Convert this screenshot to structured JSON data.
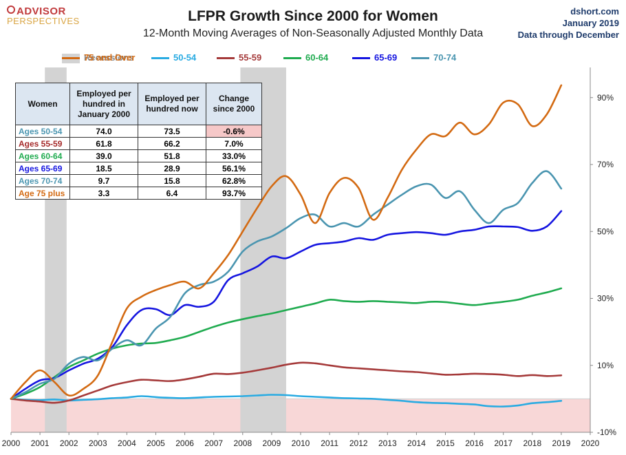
{
  "header": {
    "title": "LFPR Growth Since 2000 for Women",
    "subtitle": "12-Month Moving Averages of Non-Seasonally Adjusted Monthly Data",
    "logo_line1": "ADVISOR",
    "logo_line2": "PERSPECTIVES",
    "source": "dshort.com",
    "source_date": "January 2019",
    "source_note": "Data through December"
  },
  "legend": [
    {
      "label": "Recessions",
      "color": "#d3d3d3",
      "kind": "box"
    },
    {
      "label": "50-54",
      "color": "#29abe2",
      "kind": "line"
    },
    {
      "label": "55-59",
      "color": "#a53a3a",
      "kind": "line"
    },
    {
      "label": "60-64",
      "color": "#1fab4f",
      "kind": "line"
    },
    {
      "label": "65-69",
      "color": "#1515e0",
      "kind": "line"
    },
    {
      "label": "70-74",
      "color": "#4a95b0",
      "kind": "line"
    },
    {
      "label": "75 and Over",
      "color": "#d36a12",
      "kind": "line"
    }
  ],
  "table": {
    "headers": [
      "Women",
      "Employed per hundred in January 2000",
      "Employed per hundred now",
      "Change since 2000"
    ],
    "rows": [
      {
        "label": "Ages 50-54",
        "color": "#4a95b0",
        "v2000": "74.0",
        "now": "73.5",
        "change": "-0.6%",
        "neg": true
      },
      {
        "label": "Ages 55-59",
        "color": "#a52a2a",
        "v2000": "61.8",
        "now": "66.2",
        "change": "7.0%",
        "neg": false
      },
      {
        "label": "Ages 60-64",
        "color": "#1fab4f",
        "v2000": "39.0",
        "now": "51.8",
        "change": "33.0%",
        "neg": false
      },
      {
        "label": "Ages 65-69",
        "color": "#1515e0",
        "v2000": "18.5",
        "now": "28.9",
        "change": "56.1%",
        "neg": false
      },
      {
        "label": "Ages 70-74",
        "color": "#4a95b0",
        "v2000": "9.7",
        "now": "15.8",
        "change": "62.8%",
        "neg": false
      },
      {
        "label": "Age 75 plus",
        "color": "#d36a12",
        "v2000": "3.3",
        "now": "6.4",
        "change": "93.7%",
        "neg": false
      }
    ]
  },
  "chart_data": {
    "type": "line",
    "x_tick_labels": [
      "2000",
      "2001",
      "2002",
      "2003",
      "2004",
      "2005",
      "2006",
      "2007",
      "2008",
      "2009",
      "2010",
      "2011",
      "2012",
      "2013",
      "2014",
      "2015",
      "2016",
      "2017",
      "2018",
      "2019",
      "2020"
    ],
    "xlim": [
      2000,
      2020
    ],
    "y_tick_labels": [
      "-10%",
      "10%",
      "30%",
      "50%",
      "70%",
      "90%"
    ],
    "y_ticks": [
      -10,
      10,
      30,
      50,
      70,
      90
    ],
    "ylim": [
      -10,
      95
    ],
    "y_axis_side": "right",
    "negative_shading_color": "#f8d7d7",
    "recessions": [
      [
        2001.17,
        2001.92
      ],
      [
        2007.92,
        2009.5
      ]
    ],
    "series": [
      {
        "name": "50-54",
        "color": "#29abe2",
        "points": [
          [
            2000,
            0
          ],
          [
            2000.5,
            -0.3
          ],
          [
            2001,
            -0.4
          ],
          [
            2001.5,
            -0.2
          ],
          [
            2002,
            -0.5
          ],
          [
            2002.5,
            -0.3
          ],
          [
            2003,
            -0.1
          ],
          [
            2003.5,
            0.2
          ],
          [
            2004,
            0.4
          ],
          [
            2004.5,
            0.8
          ],
          [
            2005,
            0.5
          ],
          [
            2005.5,
            0.3
          ],
          [
            2006,
            0.2
          ],
          [
            2006.5,
            0.4
          ],
          [
            2007,
            0.6
          ],
          [
            2007.5,
            0.7
          ],
          [
            2008,
            0.8
          ],
          [
            2008.5,
            1.0
          ],
          [
            2009,
            1.2
          ],
          [
            2009.5,
            1.1
          ],
          [
            2010,
            0.8
          ],
          [
            2010.5,
            0.6
          ],
          [
            2011,
            0.4
          ],
          [
            2011.5,
            0.2
          ],
          [
            2012,
            0.1
          ],
          [
            2012.5,
            0.0
          ],
          [
            2013,
            -0.3
          ],
          [
            2013.5,
            -0.6
          ],
          [
            2014,
            -1.0
          ],
          [
            2014.5,
            -1.2
          ],
          [
            2015,
            -1.3
          ],
          [
            2015.5,
            -1.5
          ],
          [
            2016,
            -1.7
          ],
          [
            2016.5,
            -2.2
          ],
          [
            2017,
            -2.3
          ],
          [
            2017.5,
            -2.0
          ],
          [
            2018,
            -1.3
          ],
          [
            2018.5,
            -1.0
          ],
          [
            2019,
            -0.6
          ]
        ]
      },
      {
        "name": "55-59",
        "color": "#a53a3a",
        "points": [
          [
            2000,
            0
          ],
          [
            2000.5,
            -0.5
          ],
          [
            2001,
            -0.8
          ],
          [
            2001.5,
            -1.2
          ],
          [
            2002,
            -0.5
          ],
          [
            2002.5,
            1.0
          ],
          [
            2003,
            2.5
          ],
          [
            2003.5,
            4.0
          ],
          [
            2004,
            5.0
          ],
          [
            2004.5,
            5.7
          ],
          [
            2005,
            5.5
          ],
          [
            2005.5,
            5.3
          ],
          [
            2006,
            5.8
          ],
          [
            2006.5,
            6.6
          ],
          [
            2007,
            7.5
          ],
          [
            2007.5,
            7.4
          ],
          [
            2008,
            7.8
          ],
          [
            2008.5,
            8.5
          ],
          [
            2009,
            9.3
          ],
          [
            2009.5,
            10.2
          ],
          [
            2010,
            10.8
          ],
          [
            2010.5,
            10.6
          ],
          [
            2011,
            10.0
          ],
          [
            2011.5,
            9.4
          ],
          [
            2012,
            9.1
          ],
          [
            2012.5,
            8.8
          ],
          [
            2013,
            8.5
          ],
          [
            2013.5,
            8.2
          ],
          [
            2014,
            8.0
          ],
          [
            2014.5,
            7.6
          ],
          [
            2015,
            7.2
          ],
          [
            2015.5,
            7.3
          ],
          [
            2016,
            7.5
          ],
          [
            2016.5,
            7.4
          ],
          [
            2017,
            7.2
          ],
          [
            2017.5,
            6.8
          ],
          [
            2018,
            7.1
          ],
          [
            2018.5,
            6.8
          ],
          [
            2019,
            7.0
          ]
        ]
      },
      {
        "name": "60-64",
        "color": "#1fab4f",
        "points": [
          [
            2000,
            0
          ],
          [
            2000.5,
            1.5
          ],
          [
            2001,
            3.5
          ],
          [
            2001.5,
            6.5
          ],
          [
            2002,
            9.5
          ],
          [
            2002.5,
            11.5
          ],
          [
            2003,
            13.5
          ],
          [
            2003.5,
            15.0
          ],
          [
            2004,
            16.0
          ],
          [
            2004.5,
            16.5
          ],
          [
            2005,
            16.7
          ],
          [
            2005.5,
            17.5
          ],
          [
            2006,
            18.5
          ],
          [
            2006.5,
            20.0
          ],
          [
            2007,
            21.5
          ],
          [
            2007.5,
            22.8
          ],
          [
            2008,
            23.8
          ],
          [
            2008.5,
            24.7
          ],
          [
            2009,
            25.5
          ],
          [
            2009.5,
            26.5
          ],
          [
            2010,
            27.5
          ],
          [
            2010.5,
            28.5
          ],
          [
            2011,
            29.6
          ],
          [
            2011.5,
            29.2
          ],
          [
            2012,
            29.0
          ],
          [
            2012.5,
            29.2
          ],
          [
            2013,
            29.0
          ],
          [
            2013.5,
            28.8
          ],
          [
            2014,
            28.6
          ],
          [
            2014.5,
            29.0
          ],
          [
            2015,
            28.9
          ],
          [
            2015.5,
            28.4
          ],
          [
            2016,
            28.0
          ],
          [
            2016.5,
            28.5
          ],
          [
            2017,
            29.0
          ],
          [
            2017.5,
            29.6
          ],
          [
            2018,
            30.8
          ],
          [
            2018.5,
            31.8
          ],
          [
            2019,
            33.0
          ]
        ]
      },
      {
        "name": "65-69",
        "color": "#1515e0",
        "points": [
          [
            2000,
            0
          ],
          [
            2000.5,
            3.0
          ],
          [
            2001,
            5.5
          ],
          [
            2001.5,
            6.2
          ],
          [
            2002,
            8.5
          ],
          [
            2002.5,
            10.5
          ],
          [
            2003,
            12.0
          ],
          [
            2003.5,
            15.5
          ],
          [
            2004,
            22.0
          ],
          [
            2004.5,
            26.5
          ],
          [
            2005,
            26.8
          ],
          [
            2005.5,
            25.0
          ],
          [
            2006,
            28.0
          ],
          [
            2006.5,
            27.5
          ],
          [
            2007,
            29.0
          ],
          [
            2007.5,
            35.5
          ],
          [
            2008,
            37.5
          ],
          [
            2008.5,
            39.5
          ],
          [
            2009,
            42.5
          ],
          [
            2009.5,
            42.0
          ],
          [
            2010,
            44.0
          ],
          [
            2010.5,
            46.0
          ],
          [
            2011,
            46.5
          ],
          [
            2011.5,
            47.0
          ],
          [
            2012,
            48.0
          ],
          [
            2012.5,
            47.5
          ],
          [
            2013,
            49.0
          ],
          [
            2013.5,
            49.5
          ],
          [
            2014,
            49.8
          ],
          [
            2014.5,
            49.5
          ],
          [
            2015,
            49.0
          ],
          [
            2015.5,
            50.0
          ],
          [
            2016,
            50.5
          ],
          [
            2016.5,
            51.5
          ],
          [
            2017,
            51.5
          ],
          [
            2017.5,
            51.3
          ],
          [
            2018,
            50.2
          ],
          [
            2018.5,
            51.5
          ],
          [
            2019,
            56.1
          ]
        ]
      },
      {
        "name": "70-74",
        "color": "#4a95b0",
        "points": [
          [
            2000,
            0
          ],
          [
            2000.5,
            2.0
          ],
          [
            2001,
            4.5
          ],
          [
            2001.5,
            6.0
          ],
          [
            2002,
            10.5
          ],
          [
            2002.5,
            12.5
          ],
          [
            2003,
            11.5
          ],
          [
            2003.5,
            15.0
          ],
          [
            2004,
            17.5
          ],
          [
            2004.5,
            16.0
          ],
          [
            2005,
            21.0
          ],
          [
            2005.5,
            24.5
          ],
          [
            2006,
            31.5
          ],
          [
            2006.5,
            34.0
          ],
          [
            2007,
            35.0
          ],
          [
            2007.5,
            38.0
          ],
          [
            2008,
            44.0
          ],
          [
            2008.5,
            47.0
          ],
          [
            2009,
            48.5
          ],
          [
            2009.5,
            51.0
          ],
          [
            2010,
            54.0
          ],
          [
            2010.5,
            55.0
          ],
          [
            2011,
            51.5
          ],
          [
            2011.5,
            52.5
          ],
          [
            2012,
            51.5
          ],
          [
            2012.5,
            55.0
          ],
          [
            2013,
            58.0
          ],
          [
            2013.5,
            61.0
          ],
          [
            2014,
            63.5
          ],
          [
            2014.5,
            64.0
          ],
          [
            2015,
            60.0
          ],
          [
            2015.5,
            62.0
          ],
          [
            2016,
            56.5
          ],
          [
            2016.5,
            52.5
          ],
          [
            2017,
            56.5
          ],
          [
            2017.5,
            58.5
          ],
          [
            2018,
            64.5
          ],
          [
            2018.5,
            68.0
          ],
          [
            2019,
            62.8
          ]
        ]
      },
      {
        "name": "75 and Over",
        "color": "#d36a12",
        "points": [
          [
            2000,
            0
          ],
          [
            2000.5,
            5.0
          ],
          [
            2001,
            8.5
          ],
          [
            2001.5,
            5.0
          ],
          [
            2002,
            1.0
          ],
          [
            2002.5,
            3.0
          ],
          [
            2003,
            7.0
          ],
          [
            2003.5,
            17.0
          ],
          [
            2004,
            27.0
          ],
          [
            2004.5,
            30.5
          ],
          [
            2005,
            32.5
          ],
          [
            2005.5,
            34.0
          ],
          [
            2006,
            35.0
          ],
          [
            2006.5,
            33.0
          ],
          [
            2007,
            37.5
          ],
          [
            2007.5,
            43.0
          ],
          [
            2008,
            50.0
          ],
          [
            2008.5,
            57.0
          ],
          [
            2009,
            63.5
          ],
          [
            2009.5,
            66.5
          ],
          [
            2010,
            61.0
          ],
          [
            2010.5,
            52.5
          ],
          [
            2011,
            61.5
          ],
          [
            2011.5,
            66.0
          ],
          [
            2012,
            63.0
          ],
          [
            2012.5,
            53.5
          ],
          [
            2013,
            60.0
          ],
          [
            2013.5,
            68.5
          ],
          [
            2014,
            74.5
          ],
          [
            2014.5,
            79.0
          ],
          [
            2015,
            78.5
          ],
          [
            2015.5,
            82.5
          ],
          [
            2016,
            79.0
          ],
          [
            2016.5,
            82.0
          ],
          [
            2017,
            88.5
          ],
          [
            2017.5,
            88.0
          ],
          [
            2018,
            81.5
          ],
          [
            2018.5,
            85.0
          ],
          [
            2019,
            93.7
          ]
        ]
      }
    ]
  }
}
